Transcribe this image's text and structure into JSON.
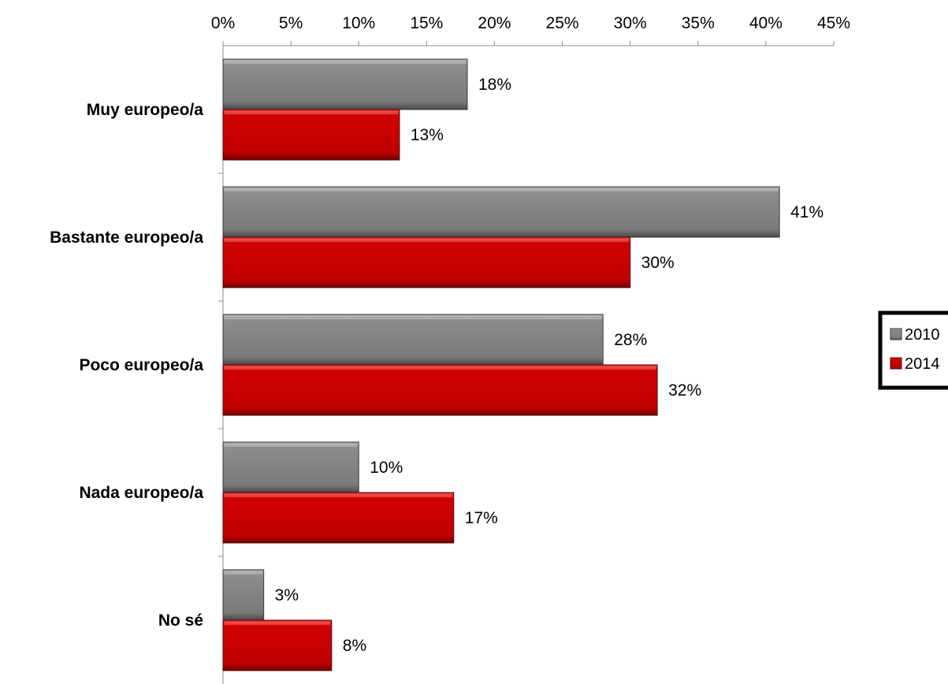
{
  "chart_data": {
    "type": "bar",
    "orientation": "horizontal",
    "categories": [
      "Muy europeo/a",
      "Bastante europeo/a",
      "Poco europeo/a",
      "Nada europeo/a",
      "No sé"
    ],
    "series": [
      {
        "name": "2010",
        "values": [
          18,
          41,
          28,
          10,
          3
        ],
        "labels": [
          "18%",
          "41%",
          "28%",
          "10%",
          "3%"
        ],
        "color": "#808080"
      },
      {
        "name": "2014",
        "values": [
          13,
          30,
          32,
          17,
          8
        ],
        "labels": [
          "13%",
          "30%",
          "32%",
          "17%",
          "8%"
        ],
        "color": "#cc0000"
      }
    ],
    "xlim": [
      0,
      45
    ],
    "x_ticks": [
      0,
      5,
      10,
      15,
      20,
      25,
      30,
      35,
      40,
      45
    ],
    "x_tick_labels": [
      "0%",
      "5%",
      "10%",
      "15%",
      "20%",
      "25%",
      "30%",
      "35%",
      "40%",
      "45%"
    ],
    "x_axis_position": "top",
    "grid": false,
    "legend_position": "right",
    "title": "",
    "xlabel": "",
    "ylabel": ""
  }
}
